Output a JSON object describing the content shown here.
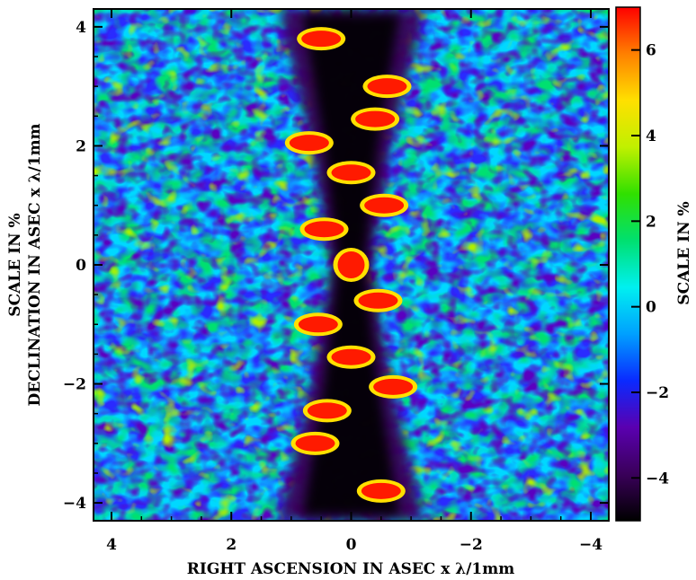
{
  "chart_data": {
    "type": "heatmap",
    "title": "",
    "xlabel": "RIGHT ASCENSION IN ASEC x λ/1mm",
    "ylabel": "DECLINATION IN ASEC x λ/1mm",
    "ylabel_extra": "SCALE IN %",
    "colorbar_label": "SCALE IN %",
    "xlim": [
      4.3,
      -4.3
    ],
    "ylim": [
      -4.3,
      4.3
    ],
    "x_ticks": [
      4,
      2,
      0,
      -2,
      -4
    ],
    "x_tick_labels": [
      "4",
      "2",
      "0",
      "−2",
      "−4"
    ],
    "y_ticks": [
      -4,
      -2,
      0,
      2,
      4
    ],
    "y_tick_labels": [
      "−4",
      "−2",
      "0",
      "2",
      "4"
    ],
    "colorbar": {
      "range": [
        -5,
        7
      ],
      "ticks": [
        -4,
        -2,
        0,
        2,
        4,
        6
      ],
      "tick_labels": [
        "−4",
        "−2",
        "0",
        "2",
        "4",
        "6"
      ],
      "colormap": [
        "#000000",
        "#3a005a",
        "#5a00b0",
        "#0a2aff",
        "#00a0ff",
        "#00f0f0",
        "#00e070",
        "#30e000",
        "#c0f000",
        "#ffe000",
        "#ff8000",
        "#ff0000"
      ]
    },
    "grid": false,
    "features": [
      {
        "label": "central peak",
        "x": 0.0,
        "y": 0.0,
        "value": 7
      },
      {
        "label": "sidelobe",
        "x": 0.0,
        "y": 1.55,
        "value": 6
      },
      {
        "label": "sidelobe",
        "x": 0.0,
        "y": -1.55,
        "value": 6
      },
      {
        "label": "sidelobe",
        "x": -0.4,
        "y": 2.45,
        "value": 6
      },
      {
        "label": "sidelobe",
        "x": 0.4,
        "y": -2.45,
        "value": 6
      },
      {
        "label": "sidelobe",
        "x": -0.6,
        "y": 3.0,
        "value": 6
      },
      {
        "label": "sidelobe",
        "x": 0.6,
        "y": -3.0,
        "value": 6
      },
      {
        "label": "sidelobe",
        "x": 0.5,
        "y": 3.8,
        "value": 7
      },
      {
        "label": "sidelobe",
        "x": -0.5,
        "y": -3.8,
        "value": 7
      },
      {
        "label": "sidelobe",
        "x": -0.55,
        "y": 1.0,
        "value": 6
      },
      {
        "label": "sidelobe",
        "x": 0.55,
        "y": -1.0,
        "value": 6
      },
      {
        "label": "sidelobe",
        "x": 0.45,
        "y": 0.6,
        "value": 5
      },
      {
        "label": "sidelobe",
        "x": -0.45,
        "y": -0.6,
        "value": 5
      },
      {
        "label": "sidelobe",
        "x": 0.7,
        "y": 2.05,
        "value": 6
      },
      {
        "label": "sidelobe",
        "x": -0.7,
        "y": -2.05,
        "value": 6
      }
    ]
  }
}
